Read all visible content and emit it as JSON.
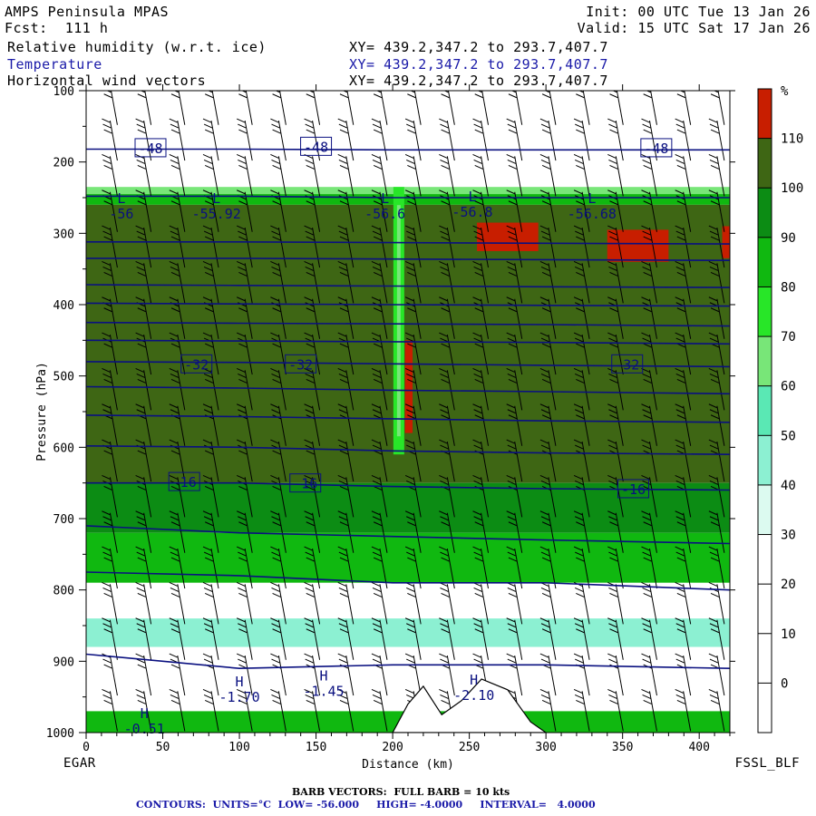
{
  "header": {
    "model": "AMPS Peninsula MPAS",
    "forecast": "Fcst:  111 h",
    "init": "Init: 00 UTC Tue 13 Jan 26",
    "valid": "Valid: 15 UTC Sat 17 Jan 26",
    "fields": [
      {
        "label": "Relative humidity (w.r.t. ice)",
        "xy": "XY= 439.2,347.2 to 293.7,407.7"
      },
      {
        "label": "Temperature",
        "xy": "XY= 439.2,347.2 to 293.7,407.7"
      },
      {
        "label": "Horizontal wind vectors",
        "xy": "XY= 439.2,347.2 to 293.7,407.7"
      }
    ]
  },
  "footer": {
    "left_station": "EGAR",
    "right_station": "FSSL_BLF",
    "barb_note": "BARB VECTORS:  FULL BARB = 10 kts",
    "contours": "CONTOURS:  UNITS=°C  LOW= -56.000     HIGH= -4.0000     INTERVAL=   4.0000"
  },
  "colors": {
    "temperature_contour": "#0a1080",
    "rh_scale": [
      "#ffffff",
      "#ffffff",
      "#ffffff",
      "#ffffff",
      "#dcfaf0",
      "#8cf0d2",
      "#5ae8b4",
      "#78e678",
      "#28e628",
      "#10b810",
      "#0c8c14",
      "#3e6614",
      "#c81e00"
    ]
  },
  "chart_data": [
    {
      "type": "heatmap",
      "title": "",
      "xlabel": "Distance (km)",
      "ylabel": "Pressure (hPa)",
      "xlim": [
        0,
        420
      ],
      "ylim": [
        1000,
        100
      ],
      "y_scale": "linear",
      "x_ticks": [
        0,
        50,
        100,
        150,
        200,
        250,
        300,
        350,
        400
      ],
      "y_ticks": [
        100,
        200,
        300,
        400,
        500,
        600,
        700,
        800,
        900,
        1000
      ],
      "colorbar": {
        "unit": "%",
        "levels": [
          0,
          10,
          20,
          30,
          40,
          50,
          60,
          70,
          80,
          90,
          100,
          110
        ],
        "legend_placement": "right"
      },
      "rh_layers": [
        {
          "p_top": 100,
          "p_bottom": 235,
          "rh": 10
        },
        {
          "p_top": 235,
          "p_bottom": 245,
          "rh": 65
        },
        {
          "p_top": 245,
          "p_bottom": 260,
          "rh": 85
        },
        {
          "p_top": 260,
          "p_bottom": 650,
          "rh": 105
        },
        {
          "p_top": 650,
          "p_bottom": 720,
          "rh": 95
        },
        {
          "p_top": 720,
          "p_bottom": 790,
          "rh": 85
        },
        {
          "p_top": 790,
          "p_bottom": 840,
          "rh": 20
        },
        {
          "p_top": 840,
          "p_bottom": 880,
          "rh": 45
        },
        {
          "p_top": 880,
          "p_bottom": 970,
          "rh": 20
        },
        {
          "p_top": 970,
          "p_bottom": 1000,
          "rh": 88
        }
      ],
      "supersaturated_patches": [
        {
          "x1": 255,
          "x2": 295,
          "p_top": 285,
          "p_bottom": 325,
          "rh": 115
        },
        {
          "x1": 340,
          "x2": 380,
          "p_top": 295,
          "p_bottom": 340,
          "rh": 115
        },
        {
          "x1": 415,
          "x2": 420,
          "p_top": 290,
          "p_bottom": 335,
          "rh": 115
        },
        {
          "x1": 208,
          "x2": 213,
          "p_top": 450,
          "p_bottom": 580,
          "rh": 115
        }
      ],
      "moist_column": {
        "x": 204,
        "p_top": 235,
        "p_bottom": 610,
        "rh": 75
      },
      "terrain": [
        {
          "x": 200,
          "p": 1000
        },
        {
          "x": 210,
          "p": 960
        },
        {
          "x": 220,
          "p": 935
        },
        {
          "x": 232,
          "p": 975
        },
        {
          "x": 245,
          "p": 955
        },
        {
          "x": 258,
          "p": 925
        },
        {
          "x": 275,
          "p": 940
        },
        {
          "x": 290,
          "p": 985
        },
        {
          "x": 300,
          "p": 1000
        }
      ],
      "series": [
        {
          "name": "-4",
          "x": [
            0,
            100,
            200,
            300,
            420
          ],
          "y": [
            890,
            910,
            905,
            905,
            910
          ]
        },
        {
          "name": "-8",
          "x": [
            0,
            100,
            200,
            300,
            420
          ],
          "y": [
            775,
            780,
            790,
            790,
            800
          ]
        },
        {
          "name": "-12",
          "x": [
            0,
            100,
            200,
            300,
            420
          ],
          "y": [
            710,
            720,
            725,
            730,
            735
          ]
        },
        {
          "name": "-16",
          "x": [
            0,
            100,
            200,
            300,
            420
          ],
          "y": [
            650,
            650,
            655,
            658,
            660
          ]
        },
        {
          "name": "-20",
          "x": [
            0,
            100,
            200,
            300,
            420
          ],
          "y": [
            598,
            600,
            605,
            608,
            610
          ]
        },
        {
          "name": "-24",
          "x": [
            0,
            100,
            200,
            300,
            420
          ],
          "y": [
            555,
            557,
            560,
            563,
            565
          ]
        },
        {
          "name": "-28",
          "x": [
            0,
            100,
            200,
            300,
            420
          ],
          "y": [
            515,
            517,
            520,
            522,
            525
          ]
        },
        {
          "name": "-32",
          "x": [
            0,
            100,
            200,
            300,
            420
          ],
          "y": [
            480,
            481,
            483,
            485,
            487
          ]
        },
        {
          "name": "-36",
          "x": [
            0,
            100,
            200,
            300,
            420
          ],
          "y": [
            450,
            451,
            452,
            453,
            455
          ]
        },
        {
          "name": "-40",
          "x": [
            0,
            100,
            200,
            300,
            420
          ],
          "y": [
            425,
            426,
            427,
            428,
            430
          ]
        },
        {
          "name": "-44",
          "x": [
            0,
            100,
            200,
            300,
            420
          ],
          "y": [
            398,
            399,
            400,
            401,
            402
          ]
        },
        {
          "name": "-48",
          "x": [
            0,
            100,
            200,
            300,
            420
          ],
          "y": [
            372,
            373,
            374,
            375,
            376
          ]
        },
        {
          "name": "-52",
          "x": [
            0,
            100,
            200,
            300,
            420
          ],
          "y": [
            335,
            335,
            336,
            337,
            338
          ]
        },
        {
          "name": "-56",
          "x": [
            0,
            100,
            200,
            300,
            420
          ],
          "y": [
            312,
            312,
            313,
            314,
            315
          ]
        },
        {
          "name": "-52",
          "x": [
            0,
            100,
            200,
            300,
            420
          ],
          "y": [
            248,
            248,
            250,
            250,
            250
          ]
        },
        {
          "name": "-48",
          "x": [
            0,
            100,
            200,
            300,
            420
          ],
          "y": [
            182,
            182,
            183,
            183,
            183
          ]
        }
      ],
      "contour_labels": [
        {
          "text": "-48",
          "x": 42,
          "p": 180
        },
        {
          "text": "-48",
          "x": 150,
          "p": 178
        },
        {
          "text": "-48",
          "x": 372,
          "p": 180
        },
        {
          "text": "-32",
          "x": 72,
          "p": 483
        },
        {
          "text": "-32",
          "x": 140,
          "p": 483
        },
        {
          "text": "-32",
          "x": 353,
          "p": 483
        },
        {
          "text": "-16",
          "x": 64,
          "p": 648
        },
        {
          "text": "-16",
          "x": 143,
          "p": 650
        },
        {
          "text": "-16",
          "x": 357,
          "p": 658
        }
      ],
      "extrema": [
        {
          "kind": "L",
          "value": "-56",
          "x": 23,
          "p": 263
        },
        {
          "kind": "L",
          "value": "-55.92",
          "x": 85,
          "p": 263
        },
        {
          "kind": "L",
          "value": "-56.6",
          "x": 195,
          "p": 263
        },
        {
          "kind": "L",
          "value": "-56.8",
          "x": 252,
          "p": 260
        },
        {
          "kind": "L",
          "value": "-56.68",
          "x": 330,
          "p": 263
        },
        {
          "kind": "H",
          "value": "-1.70",
          "x": 100,
          "p": 940
        },
        {
          "kind": "H",
          "value": "-1.45",
          "x": 155,
          "p": 932
        },
        {
          "kind": "H",
          "value": "-2.10",
          "x": 253,
          "p": 938
        },
        {
          "kind": "H",
          "value": "-0.51",
          "x": 38,
          "p": 985
        }
      ],
      "wind_barbs": {
        "columns_x": [
          18,
          40,
          62,
          84,
          106,
          128,
          150,
          172,
          194,
          216,
          238,
          260,
          282,
          304,
          326,
          348,
          370,
          392,
          414
        ],
        "levels_p": [
          120,
          170,
          220,
          270,
          320,
          370,
          420,
          470,
          520,
          570,
          620,
          670,
          720,
          770,
          820,
          870,
          920,
          970
        ]
      }
    }
  ]
}
